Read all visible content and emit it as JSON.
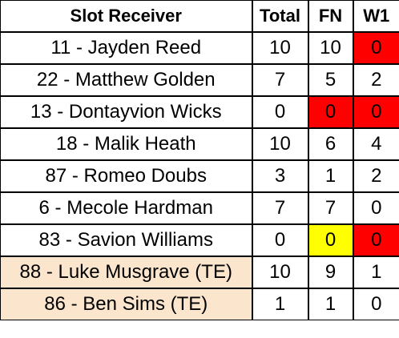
{
  "table": {
    "headers": [
      "Slot Receiver",
      "Total",
      "FN",
      "W1"
    ],
    "rows": [
      {
        "name": "11 - Jayden Reed",
        "total": "10",
        "fn": "10",
        "w1": "0",
        "name_bg": "",
        "fn_bg": "",
        "w1_bg": "#ff0000"
      },
      {
        "name": "22 - Matthew Golden",
        "total": "7",
        "fn": "5",
        "w1": "2",
        "name_bg": "",
        "fn_bg": "",
        "w1_bg": ""
      },
      {
        "name": "13 - Dontayvion Wicks",
        "total": "0",
        "fn": "0",
        "w1": "0",
        "name_bg": "",
        "fn_bg": "#ff0000",
        "w1_bg": "#ff0000"
      },
      {
        "name": "18 - Malik Heath",
        "total": "10",
        "fn": "6",
        "w1": "4",
        "name_bg": "",
        "fn_bg": "",
        "w1_bg": ""
      },
      {
        "name": "87 - Romeo Doubs",
        "total": "3",
        "fn": "1",
        "w1": "2",
        "name_bg": "",
        "fn_bg": "",
        "w1_bg": ""
      },
      {
        "name": "6 - Mecole Hardman",
        "total": "7",
        "fn": "7",
        "w1": "0",
        "name_bg": "",
        "fn_bg": "",
        "w1_bg": ""
      },
      {
        "name": "83 - Savion Williams",
        "total": "0",
        "fn": "0",
        "w1": "0",
        "name_bg": "",
        "fn_bg": "#ffff00",
        "w1_bg": "#ff0000"
      },
      {
        "name": "88 - Luke Musgrave (TE)",
        "total": "10",
        "fn": "9",
        "w1": "1",
        "name_bg": "#fce5cd",
        "fn_bg": "",
        "w1_bg": ""
      },
      {
        "name": "86 - Ben Sims (TE)",
        "total": "1",
        "fn": "1",
        "w1": "0",
        "name_bg": "#fce5cd",
        "fn_bg": "",
        "w1_bg": ""
      }
    ]
  }
}
